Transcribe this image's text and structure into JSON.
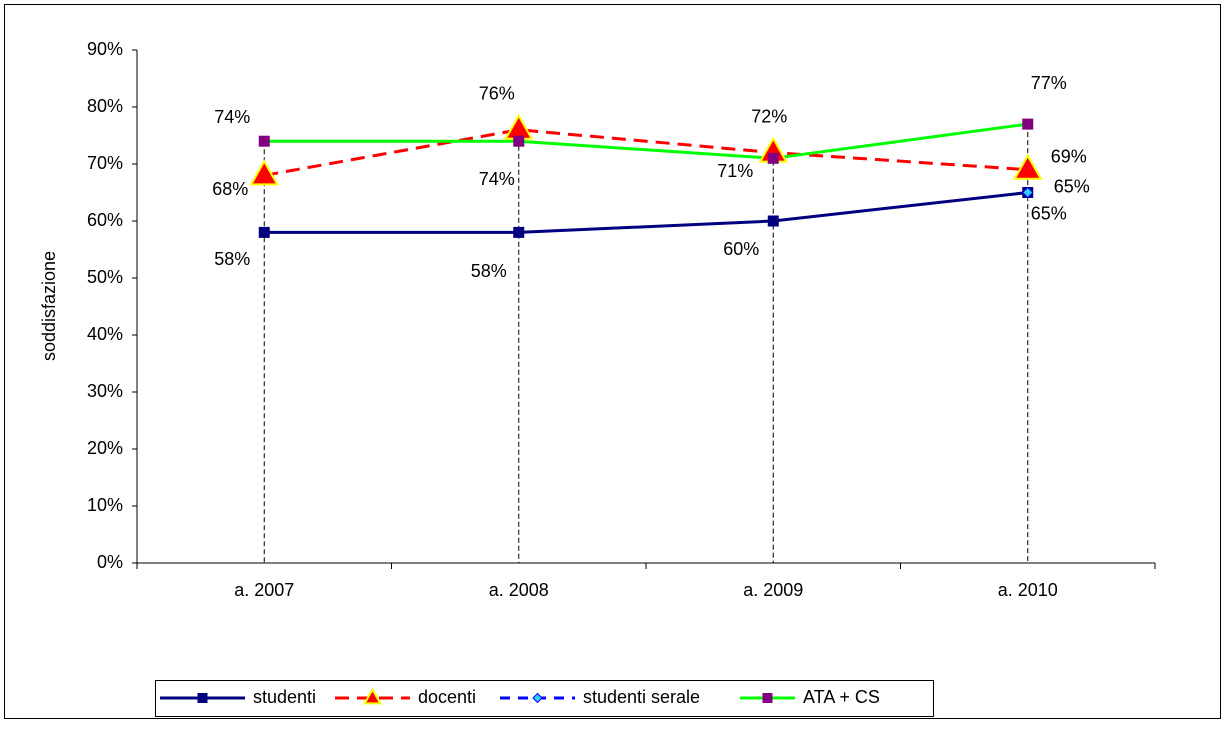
{
  "chart_data": {
    "type": "line",
    "y_label": "soddisfazione",
    "categories": [
      "a. 2007",
      "a. 2008",
      "a. 2009",
      "a. 2010"
    ],
    "ylim": [
      0,
      90
    ],
    "yticks": [
      {
        "value": 0,
        "label": "0%"
      },
      {
        "value": 10,
        "label": "10%"
      },
      {
        "value": 20,
        "label": "20%"
      },
      {
        "value": 30,
        "label": "30%"
      },
      {
        "value": 40,
        "label": "40%"
      },
      {
        "value": 50,
        "label": "50%"
      },
      {
        "value": 60,
        "label": "60%"
      },
      {
        "value": 70,
        "label": "70%"
      },
      {
        "value": 80,
        "label": "80%"
      },
      {
        "value": 90,
        "label": "90%"
      }
    ],
    "series": [
      {
        "name": "studenti",
        "color": "#000080",
        "values": [
          58,
          58,
          60,
          65
        ],
        "value_labels": [
          "58%",
          "58%",
          "60%",
          "65%"
        ]
      },
      {
        "name": "docenti",
        "color": "#FF0000",
        "values": [
          68,
          76,
          72,
          69
        ],
        "value_labels": [
          "68%",
          "76%",
          "72%",
          "69%"
        ]
      },
      {
        "name": "studenti serale",
        "color": "#0000FF",
        "values": [
          null,
          null,
          null,
          65
        ],
        "value_labels": [
          null,
          null,
          null,
          "65%"
        ]
      },
      {
        "name": "ATA + CS",
        "color": "#00FF00",
        "values": [
          74,
          74,
          71,
          77
        ],
        "value_labels": [
          "74%",
          "74%",
          "71%",
          "77%"
        ]
      }
    ]
  }
}
